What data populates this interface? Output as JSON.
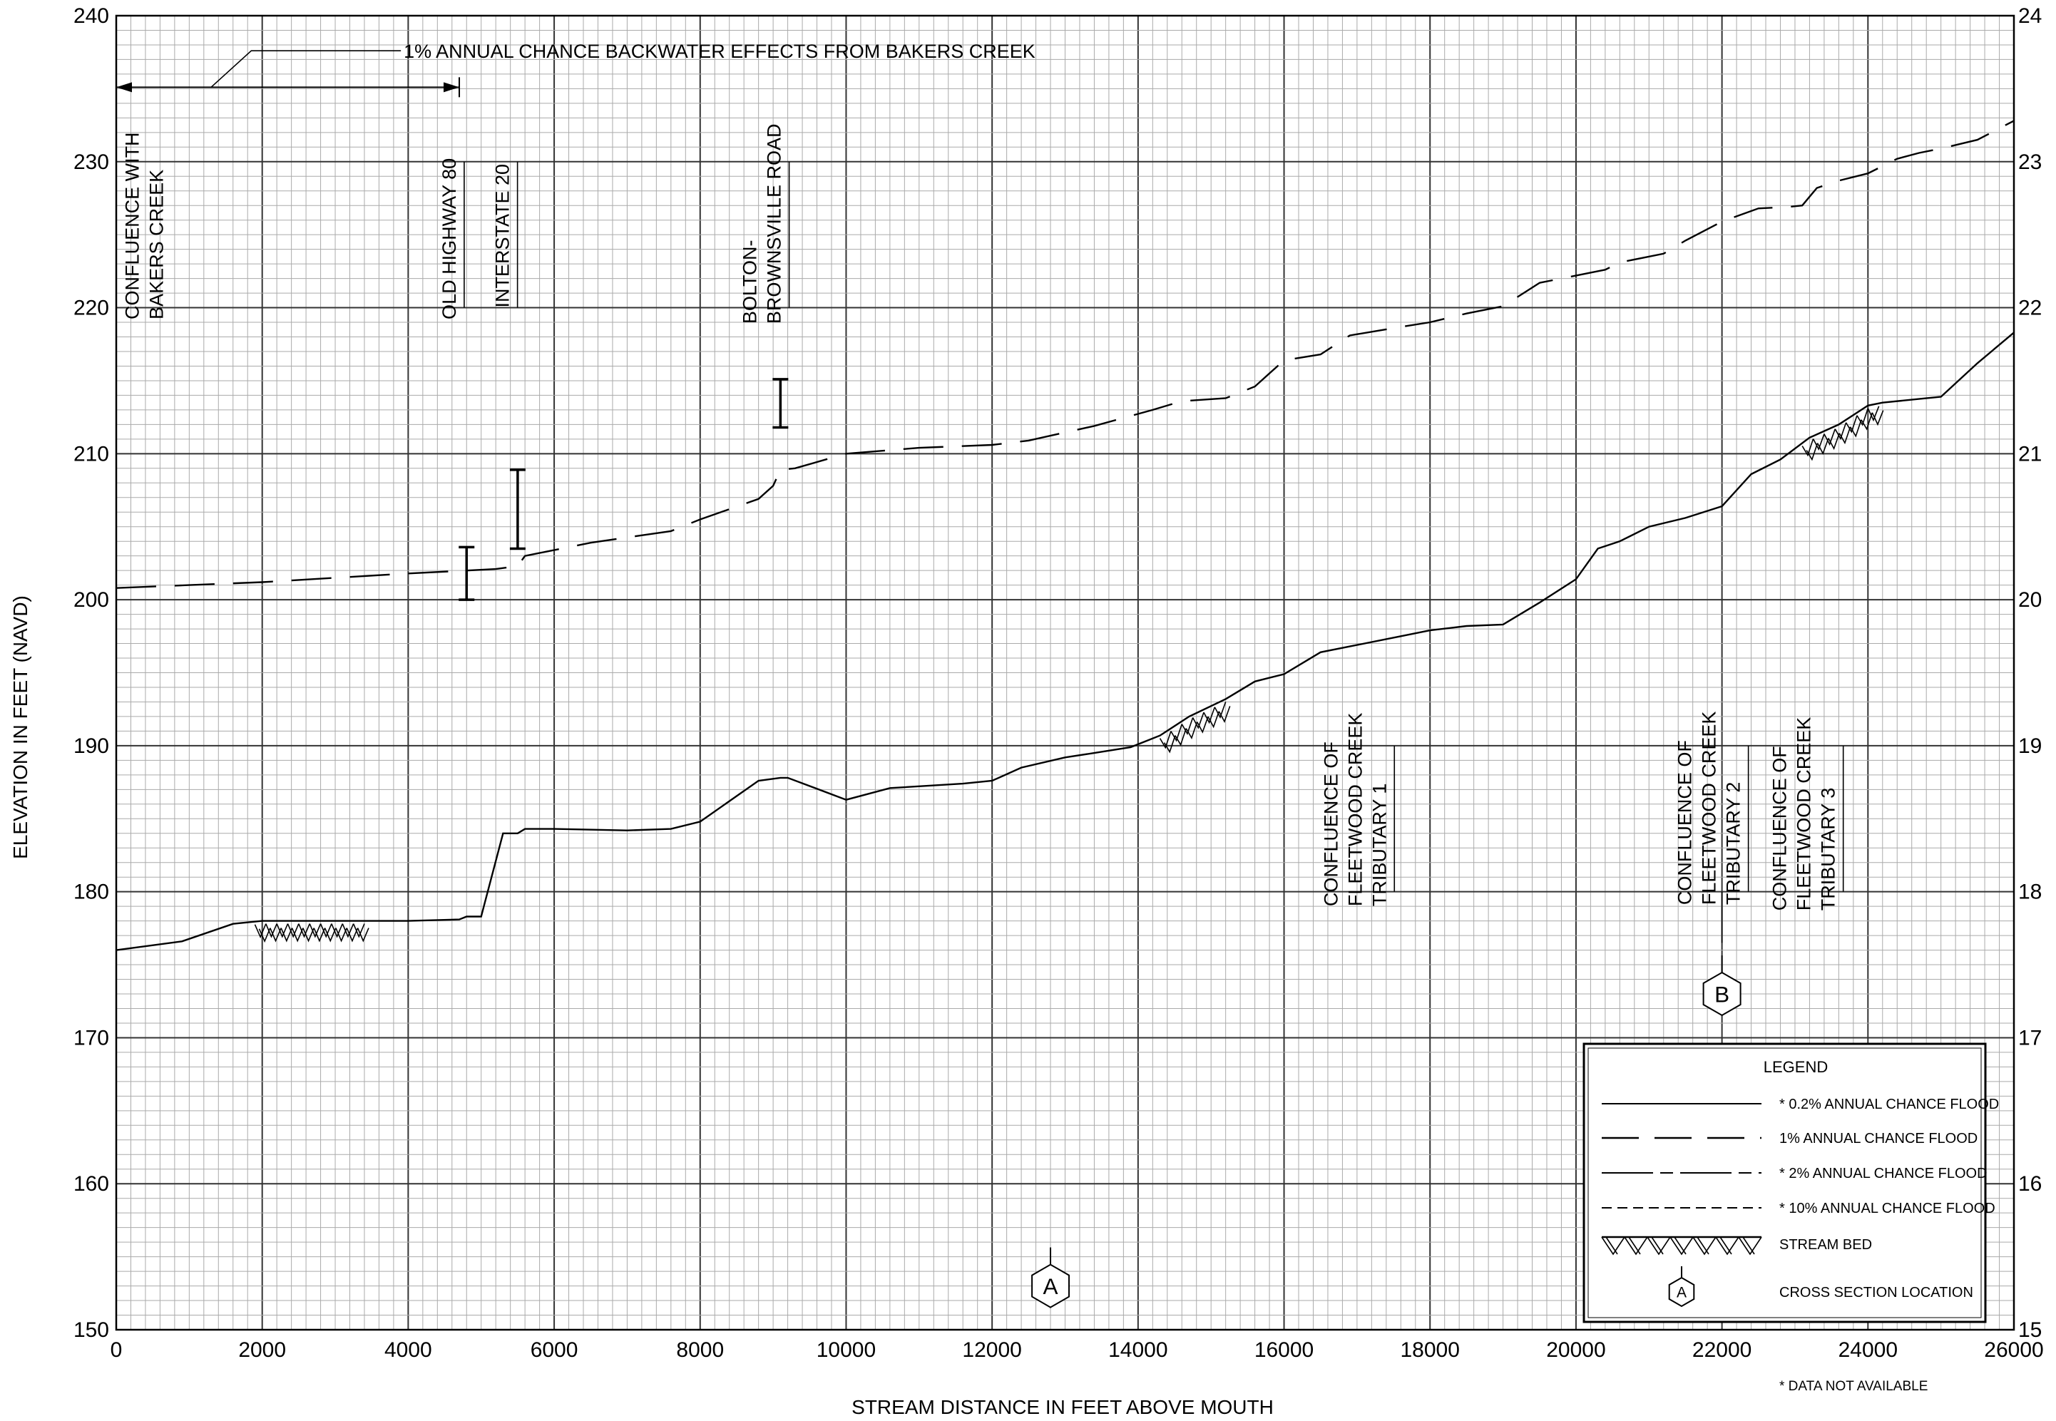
{
  "chart_data": {
    "type": "line",
    "title": "",
    "xlabel": "STREAM DISTANCE IN FEET ABOVE MOUTH",
    "ylabel": "ELEVATION IN FEET (NAVD)",
    "xlim": [
      0,
      26000
    ],
    "ylim": [
      150,
      240
    ],
    "x_ticks": [
      "0",
      "2000",
      "4000",
      "6000",
      "8000",
      "10000",
      "12000",
      "14000",
      "16000",
      "18000",
      "20000",
      "22000",
      "24000",
      "26000"
    ],
    "y_ticks": [
      "150",
      "160",
      "170",
      "180",
      "190",
      "200",
      "210",
      "220",
      "230",
      "240"
    ],
    "y_ticks_right": [
      "15",
      "16",
      "17",
      "18",
      "19",
      "20",
      "21",
      "22",
      "23",
      "24"
    ],
    "grid": true,
    "series": [
      {
        "name": "1% ANNUAL CHANCE FLOOD",
        "style": "long-dash",
        "x": [
          0,
          1000,
          2000,
          3000,
          4000,
          4800,
          5200,
          5500,
          5600,
          5800,
          6500,
          7600,
          8000,
          8800,
          9000,
          9100,
          9300,
          10000,
          11000,
          12000,
          12500,
          13400,
          14200,
          14600,
          15200,
          15600,
          16000,
          16500,
          16900,
          17500,
          18000,
          18500,
          19000,
          19500,
          20400,
          20600,
          20900,
          21200,
          21500,
          22000,
          22500,
          22900,
          23100,
          23300,
          23600,
          24000,
          24400,
          24700,
          25000,
          25500,
          26000
        ],
        "y": [
          200.8,
          201.0,
          201.2,
          201.5,
          201.8,
          202.0,
          202.1,
          202.3,
          203.0,
          203.2,
          203.9,
          204.7,
          205.5,
          206.9,
          207.8,
          208.9,
          209.0,
          210.0,
          210.4,
          210.6,
          210.9,
          211.9,
          213.0,
          213.6,
          213.8,
          214.6,
          216.4,
          216.8,
          218.1,
          218.6,
          219.0,
          219.6,
          220.1,
          221.7,
          222.6,
          223.1,
          223.4,
          223.7,
          224.6,
          225.9,
          226.8,
          226.9,
          227.0,
          228.2,
          228.7,
          229.2,
          230.2,
          230.6,
          230.9,
          231.5,
          232.8
        ]
      },
      {
        "name": "STREAM BED",
        "style": "solid",
        "x": [
          0,
          900,
          1600,
          2000,
          3000,
          4000,
          4700,
          4800,
          5000,
          5300,
          5500,
          5600,
          6000,
          7000,
          7600,
          8000,
          8800,
          9100,
          9200,
          10000,
          10600,
          11600,
          12000,
          12400,
          13000,
          13400,
          13900,
          14300,
          14700,
          15200,
          15600,
          16000,
          16500,
          17000,
          17600,
          18000,
          18500,
          19000,
          19500,
          20000,
          20300,
          20600,
          21000,
          21500,
          22000,
          22400,
          22800,
          23200,
          23600,
          24000,
          24200,
          25000,
          25500,
          26000
        ],
        "y": [
          176.0,
          176.6,
          177.8,
          178.0,
          178.0,
          178.0,
          178.1,
          178.3,
          178.3,
          184.0,
          184.0,
          184.3,
          184.3,
          184.2,
          184.3,
          184.8,
          187.6,
          187.8,
          187.8,
          186.3,
          187.1,
          187.4,
          187.6,
          188.5,
          189.2,
          189.5,
          189.9,
          190.7,
          192.0,
          193.2,
          194.4,
          194.9,
          196.4,
          196.9,
          197.5,
          197.9,
          198.2,
          198.3,
          199.8,
          201.4,
          203.5,
          204.0,
          205.0,
          205.6,
          206.4,
          208.6,
          209.6,
          211.1,
          212.0,
          213.3,
          213.5,
          213.9,
          216.2,
          218.3
        ]
      }
    ],
    "hatch_marks": [
      {
        "x1": 1900,
        "x2": 3300
      },
      {
        "x1": 14300,
        "x2": 15200
      },
      {
        "x1": 23100,
        "x2": 24100
      }
    ],
    "structure_bars": [
      {
        "x": 4800,
        "y1": 200.0,
        "y2": 203.6
      },
      {
        "x": 5500,
        "y1": 203.5,
        "y2": 208.9
      },
      {
        "x": 9100,
        "y1": 211.8,
        "y2": 215.1
      }
    ],
    "cross_sections": [
      {
        "id": "A",
        "x": 12800,
        "y": 153.0
      },
      {
        "id": "B",
        "x": 22000,
        "y": 173.0
      }
    ],
    "annotations": {
      "backwater": "1% ANNUAL CHANCE BACKWATER EFFECTS FROM BAKERS CREEK",
      "confluence_bakers": [
        "CONFLUENCE WITH",
        "BAKERS CREEK"
      ],
      "old_highway": [
        "OLD HIGHWAY 80"
      ],
      "interstate": [
        "INTERSTATE 20"
      ],
      "bolton": [
        "BOLTON-",
        "BROWNSVILLE ROAD"
      ],
      "trib1": [
        "CONFLUENCE OF",
        "FLEETWOOD CREEK",
        "TRIBUTARY 1"
      ],
      "trib2": [
        "CONFLUENCE OF",
        "FLEETWOOD CREEK",
        "TRIBUTARY 2"
      ],
      "trib3": [
        "CONFLUENCE OF",
        "FLEETWOOD CREEK",
        "TRIBUTARY 3"
      ]
    },
    "legend": {
      "title": "LEGEND",
      "items": [
        {
          "label": "* 0.2% ANNUAL CHANCE FLOOD",
          "style": "solid"
        },
        {
          "label": "1% ANNUAL CHANCE FLOOD",
          "style": "long-dash"
        },
        {
          "label": "* 2% ANNUAL CHANCE FLOOD",
          "style": "dash-dot"
        },
        {
          "label": "* 10% ANNUAL CHANCE FLOOD",
          "style": "short-dash"
        },
        {
          "label": "STREAM BED",
          "style": "hatch"
        },
        {
          "label": "CROSS SECTION LOCATION",
          "style": "hexagon",
          "symbol": "A"
        }
      ]
    },
    "note": "* DATA NOT AVAILABLE"
  }
}
